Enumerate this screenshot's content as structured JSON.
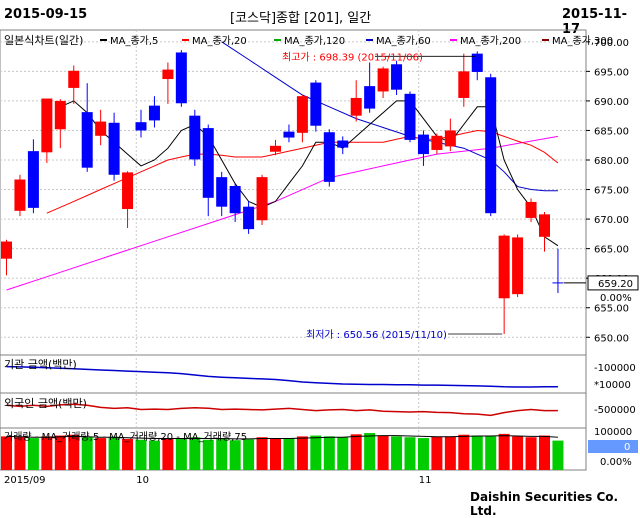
{
  "header": {
    "start_date": "2015-09-15",
    "title": "[코스닥]종합 [201], 일간",
    "end_date": "2015-11-17"
  },
  "main_panel": {
    "legend_title": "일본식차트(일간)",
    "legend": [
      {
        "label": "MA_종가,5",
        "color": "#000000"
      },
      {
        "label": "MA_종가,20",
        "color": "#ff0000"
      },
      {
        "label": "MA_종가,120",
        "color": "#00aa00"
      },
      {
        "label": "MA_종가,60",
        "color": "#0000cc"
      },
      {
        "label": "MA_종가,200",
        "color": "#ff00ff"
      },
      {
        "label": "MA_종가,300",
        "color": "#880000"
      }
    ],
    "high_annotation": "최고가 : 698.39 (2015/11/06)",
    "low_annotation": "최저가 : 650.56 (2015/11/10)",
    "current_price": "659.20",
    "change_pct": "0.00%"
  },
  "institution_panel": {
    "label": "기관 금액(백만)",
    "tick_labels": [
      "-100000",
      "*10000"
    ]
  },
  "foreign_panel": {
    "label": "외국인 금액(백만)",
    "tick_labels": [
      "-500000"
    ]
  },
  "volume_panel": {
    "label": "거래량 - MA_거래량,5 - MA_거래량,20 - MA_거래량,75",
    "tick_label": "100000",
    "value": "0",
    "pct": "0.00%"
  },
  "x_axis_labels": [
    {
      "label": "2015/09",
      "index": 0
    },
    {
      "label": "10",
      "index": 10
    },
    {
      "label": "11",
      "index": 31
    }
  ],
  "footer": "Daishin Securities Co. Ltd.",
  "colors": {
    "up": "#ff0000",
    "down": "#0000ff",
    "grid": "#c8c8c8",
    "volume_up": "#ff0000",
    "volume_down": "#00cc00"
  },
  "chart_data": {
    "type": "candlestick",
    "y_axis": [
      650,
      655,
      660,
      665,
      670,
      675,
      680,
      685,
      690,
      695,
      700
    ],
    "ylim": [
      647,
      702
    ],
    "candles": [
      {
        "o": 663.3,
        "c": 666.2,
        "h": 666.5,
        "l": 660.5
      },
      {
        "o": 671.4,
        "c": 676.7,
        "h": 677.5,
        "l": 670.5
      },
      {
        "o": 681.5,
        "c": 671.9,
        "h": 683.5,
        "l": 671.0
      },
      {
        "o": 681.3,
        "c": 690.4,
        "h": 690.4,
        "l": 679.5
      },
      {
        "o": 685.2,
        "c": 690.0,
        "h": 690.3,
        "l": 682.0
      },
      {
        "o": 692.2,
        "c": 695.1,
        "h": 696.0,
        "l": 689.5
      },
      {
        "o": 688.1,
        "c": 678.7,
        "h": 693.0,
        "l": 678.0
      },
      {
        "o": 684.1,
        "c": 686.5,
        "h": 688.5,
        "l": 682.5
      },
      {
        "o": 686.3,
        "c": 677.5,
        "h": 688.0,
        "l": 676.5
      },
      {
        "o": 671.7,
        "c": 677.9,
        "h": 678.1,
        "l": 668.5
      },
      {
        "o": 686.4,
        "c": 685.0,
        "h": 688.5,
        "l": 683.8
      },
      {
        "o": 689.2,
        "c": 686.7,
        "h": 690.8,
        "l": 685.5
      },
      {
        "o": 693.7,
        "c": 695.3,
        "h": 696.5,
        "l": 689.5
      },
      {
        "o": 698.2,
        "c": 689.6,
        "h": 698.6,
        "l": 689.0
      },
      {
        "o": 687.5,
        "c": 680.1,
        "h": 688.5,
        "l": 679.0
      },
      {
        "o": 685.4,
        "c": 673.6,
        "h": 686.0,
        "l": 670.5
      },
      {
        "o": 677.1,
        "c": 672.1,
        "h": 678.0,
        "l": 670.5
      },
      {
        "o": 675.6,
        "c": 671.0,
        "h": 676.0,
        "l": 669.5
      },
      {
        "o": 672.1,
        "c": 668.3,
        "h": 673.0,
        "l": 667.5
      },
      {
        "o": 669.8,
        "c": 677.1,
        "h": 677.5,
        "l": 669.0
      },
      {
        "o": 681.4,
        "c": 682.4,
        "h": 683.4,
        "l": 680.8
      },
      {
        "o": 684.8,
        "c": 683.8,
        "h": 686.0,
        "l": 683.0
      },
      {
        "o": 684.6,
        "c": 690.8,
        "h": 691.0,
        "l": 683.0
      },
      {
        "o": 693.1,
        "c": 685.8,
        "h": 693.5,
        "l": 684.8
      },
      {
        "o": 684.7,
        "c": 676.3,
        "h": 685.2,
        "l": 675.5
      },
      {
        "o": 683.3,
        "c": 682.1,
        "h": 684.0,
        "l": 681.0
      },
      {
        "o": 687.5,
        "c": 690.5,
        "h": 693.5,
        "l": 686.5
      },
      {
        "o": 692.5,
        "c": 688.7,
        "h": 696.5,
        "l": 688.0
      },
      {
        "o": 691.6,
        "c": 695.5,
        "h": 695.8,
        "l": 690.5
      },
      {
        "o": 696.2,
        "c": 691.9,
        "h": 696.8,
        "l": 691.0
      },
      {
        "o": 691.2,
        "c": 683.4,
        "h": 691.6,
        "l": 683.0
      },
      {
        "o": 684.3,
        "c": 681.0,
        "h": 685.0,
        "l": 679.0
      },
      {
        "o": 681.7,
        "c": 684.1,
        "h": 684.5,
        "l": 681.0
      },
      {
        "o": 682.3,
        "c": 685.0,
        "h": 687.0,
        "l": 681.5
      },
      {
        "o": 690.5,
        "c": 695.0,
        "h": 698.0,
        "l": 689.0
      },
      {
        "o": 698.0,
        "c": 694.9,
        "h": 698.39,
        "l": 693.5
      },
      {
        "o": 694.0,
        "c": 671.0,
        "h": 694.6,
        "l": 670.5
      },
      {
        "o": 656.6,
        "c": 667.2,
        "h": 667.4,
        "l": 650.56
      },
      {
        "o": 657.3,
        "c": 666.9,
        "h": 667.4,
        "l": 656.8
      },
      {
        "o": 670.2,
        "c": 672.9,
        "h": 673.5,
        "l": 669.5
      },
      {
        "o": 667.0,
        "c": 670.8,
        "h": 671.2,
        "l": 664.5
      },
      {
        "o": 659.2,
        "c": 659.2,
        "h": 665.0,
        "l": 657.5
      }
    ],
    "ma5": [
      [
        4,
        689
      ],
      [
        5,
        690
      ],
      [
        6,
        688
      ],
      [
        7,
        685
      ],
      [
        8,
        683
      ],
      [
        9,
        681
      ],
      [
        10,
        679
      ],
      [
        11,
        680
      ],
      [
        12,
        682
      ],
      [
        13,
        685
      ],
      [
        14,
        686
      ],
      [
        15,
        684
      ],
      [
        16,
        680
      ],
      [
        17,
        676
      ],
      [
        18,
        673
      ],
      [
        19,
        672
      ],
      [
        20,
        673
      ],
      [
        21,
        676
      ],
      [
        22,
        679
      ],
      [
        23,
        683
      ],
      [
        24,
        683
      ],
      [
        25,
        682
      ],
      [
        26,
        684
      ],
      [
        27,
        686
      ],
      [
        28,
        688
      ],
      [
        29,
        690
      ],
      [
        30,
        690
      ],
      [
        31,
        687
      ],
      [
        32,
        684
      ],
      [
        33,
        683
      ],
      [
        34,
        686
      ],
      [
        35,
        689
      ],
      [
        36,
        689
      ],
      [
        37,
        680
      ],
      [
        38,
        675
      ],
      [
        39,
        672
      ],
      [
        40,
        667
      ],
      [
        41,
        665.5
      ]
    ],
    "ma20": [
      [
        3,
        671
      ],
      [
        4,
        672
      ],
      [
        5,
        673
      ],
      [
        6,
        674
      ],
      [
        7,
        675
      ],
      [
        8,
        676
      ],
      [
        9,
        677
      ],
      [
        10,
        678
      ],
      [
        11,
        679
      ],
      [
        12,
        680
      ],
      [
        13,
        680.5
      ],
      [
        14,
        681
      ],
      [
        15,
        681
      ],
      [
        16,
        680.8
      ],
      [
        17,
        680.5
      ],
      [
        18,
        680.5
      ],
      [
        19,
        680.5
      ],
      [
        20,
        681
      ],
      [
        21,
        681.5
      ],
      [
        22,
        682
      ],
      [
        23,
        682.5
      ],
      [
        24,
        683
      ],
      [
        25,
        683
      ],
      [
        26,
        683
      ],
      [
        27,
        683
      ],
      [
        28,
        683
      ],
      [
        29,
        683.5
      ],
      [
        30,
        684
      ],
      [
        31,
        683.5
      ],
      [
        32,
        683.5
      ],
      [
        33,
        684
      ],
      [
        34,
        684.5
      ],
      [
        35,
        685
      ],
      [
        36,
        684.8
      ],
      [
        37,
        684
      ],
      [
        38,
        683.2
      ],
      [
        39,
        682.5
      ],
      [
        40,
        681.3
      ],
      [
        41,
        679.5
      ]
    ],
    "ma60": [
      [
        16,
        700
      ],
      [
        18,
        697
      ],
      [
        20,
        694
      ],
      [
        22,
        691
      ],
      [
        24,
        689
      ],
      [
        26,
        687
      ],
      [
        28,
        685.5
      ],
      [
        30,
        684
      ],
      [
        32,
        683
      ],
      [
        34,
        682
      ],
      [
        36,
        680
      ],
      [
        37,
        678
      ],
      [
        38,
        675.5
      ],
      [
        39,
        675
      ],
      [
        40,
        674.8
      ],
      [
        41,
        674.8
      ]
    ],
    "ma200": [
      [
        0,
        658
      ],
      [
        4,
        661
      ],
      [
        8,
        664
      ],
      [
        12,
        667
      ],
      [
        16,
        670
      ],
      [
        20,
        673
      ],
      [
        24,
        677
      ],
      [
        28,
        679
      ],
      [
        32,
        681
      ],
      [
        36,
        682
      ],
      [
        41,
        684
      ]
    ],
    "volume": [
      0.8,
      0.78,
      0.76,
      0.8,
      0.82,
      0.84,
      0.78,
      0.76,
      0.79,
      0.74,
      0.72,
      0.7,
      0.74,
      0.76,
      0.78,
      0.72,
      0.74,
      0.71,
      0.73,
      0.78,
      0.74,
      0.75,
      0.8,
      0.82,
      0.8,
      0.78,
      0.85,
      0.88,
      0.82,
      0.8,
      0.78,
      0.76,
      0.79,
      0.8,
      0.84,
      0.82,
      0.8,
      0.86,
      0.8,
      0.78,
      0.82,
      0.7
    ],
    "volume_ma": [
      0.8,
      0.79,
      0.78,
      0.78,
      0.79,
      0.8,
      0.79,
      0.78,
      0.78,
      0.77,
      0.76,
      0.75,
      0.75,
      0.75,
      0.75,
      0.75,
      0.75,
      0.74,
      0.74,
      0.75,
      0.75,
      0.75,
      0.76,
      0.77,
      0.78,
      0.78,
      0.8,
      0.81,
      0.82,
      0.82,
      0.81,
      0.8,
      0.79,
      0.79,
      0.8,
      0.81,
      0.81,
      0.82,
      0.81,
      0.8,
      0.8,
      0.78
    ],
    "institution": [
      0.2,
      0.21,
      0.22,
      0.24,
      0.26,
      0.28,
      0.3,
      0.32,
      0.34,
      0.36,
      0.38,
      0.4,
      0.42,
      0.45,
      0.5,
      0.55,
      0.58,
      0.6,
      0.62,
      0.64,
      0.66,
      0.7,
      0.75,
      0.78,
      0.8,
      0.82,
      0.83,
      0.84,
      0.84,
      0.85,
      0.85,
      0.86,
      0.86,
      0.87,
      0.88,
      0.89,
      0.9,
      0.92,
      0.93,
      0.93,
      0.92,
      0.92
    ],
    "foreign": [
      0.3,
      0.35,
      0.3,
      0.35,
      0.28,
      0.25,
      0.3,
      0.4,
      0.45,
      0.42,
      0.5,
      0.48,
      0.5,
      0.45,
      0.42,
      0.44,
      0.5,
      0.48,
      0.5,
      0.52,
      0.48,
      0.45,
      0.5,
      0.55,
      0.52,
      0.5,
      0.55,
      0.52,
      0.58,
      0.6,
      0.62,
      0.6,
      0.64,
      0.65,
      0.7,
      0.72,
      0.78,
      0.65,
      0.55,
      0.5,
      0.55,
      0.55
    ]
  }
}
